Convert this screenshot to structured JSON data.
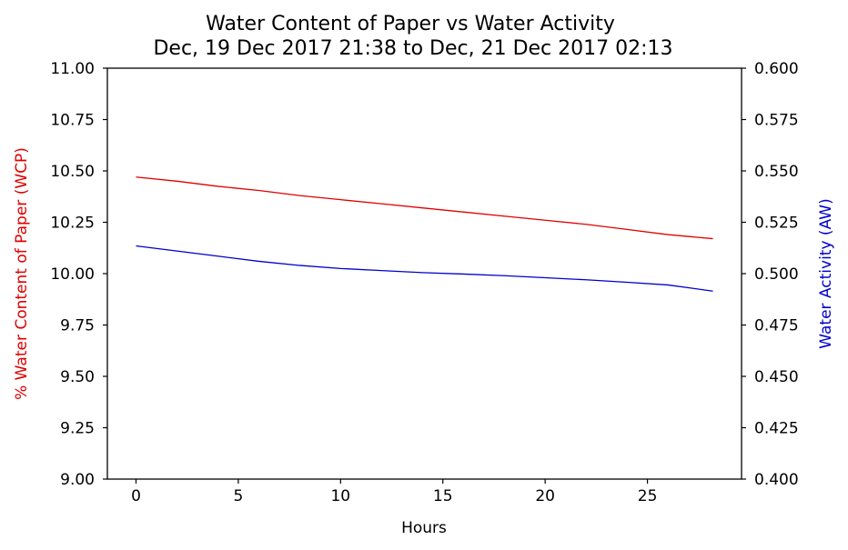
{
  "chart_data": {
    "type": "line",
    "title": "Water Content of Paper vs Water Activity",
    "subtitle": "Dec, 19 Dec 2017 21:38 to Dec, 21 Dec 2017 02:13",
    "xlabel": "Hours",
    "ylabel_left": "% Water Content of Paper (WCP)",
    "ylabel_right": "Water Activity (AW)",
    "xlim": [
      -1.4,
      29.6
    ],
    "x_ticks": [
      "0",
      "5",
      "10",
      "15",
      "20",
      "25"
    ],
    "ylim_left": [
      9.0,
      11.0
    ],
    "y_left_ticks": [
      "9.00",
      "9.25",
      "9.50",
      "9.75",
      "10.00",
      "10.25",
      "10.50",
      "10.75",
      "11.00"
    ],
    "ylim_right": [
      0.4,
      0.6
    ],
    "y_right_ticks": [
      "0.400",
      "0.425",
      "0.450",
      "0.475",
      "0.500",
      "0.525",
      "0.550",
      "0.575",
      "0.600"
    ],
    "grid": false,
    "series": [
      {
        "axis": "left",
        "color": "#e00000",
        "x": [
          0,
          2,
          4,
          6,
          8,
          10,
          12,
          14,
          16,
          18,
          20,
          22,
          24,
          26,
          28.2
        ],
        "y": [
          10.47,
          10.45,
          10.425,
          10.405,
          10.38,
          10.36,
          10.34,
          10.32,
          10.3,
          10.28,
          10.26,
          10.24,
          10.215,
          10.19,
          10.17
        ]
      },
      {
        "axis": "right",
        "color": "#0000cc",
        "x": [
          0,
          2,
          4,
          6,
          8,
          10,
          12,
          14,
          16,
          18,
          20,
          22,
          24,
          26,
          28.2
        ],
        "y": [
          0.5135,
          0.511,
          0.5085,
          0.506,
          0.504,
          0.5025,
          0.5015,
          0.5005,
          0.4998,
          0.499,
          0.498,
          0.497,
          0.4958,
          0.4945,
          0.4915
        ]
      }
    ]
  }
}
